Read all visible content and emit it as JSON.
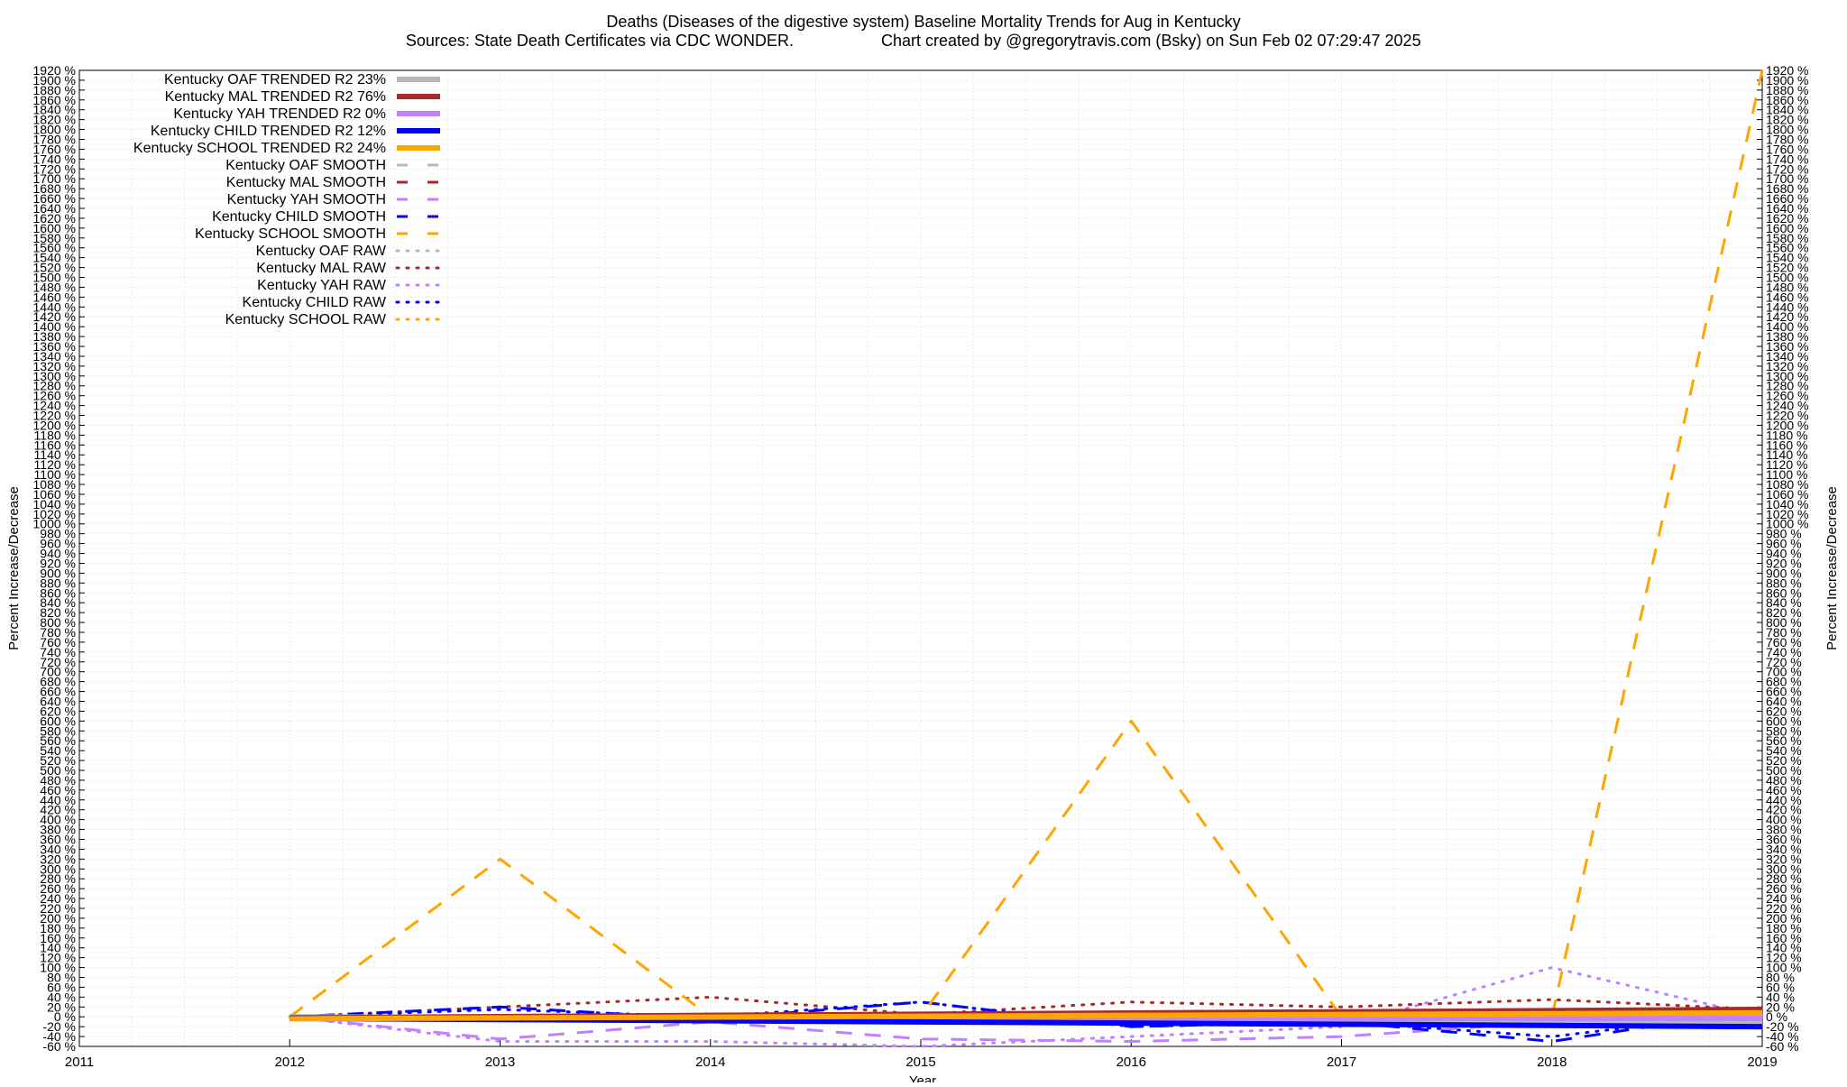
{
  "chart_data": {
    "type": "line",
    "title": "Deaths (Diseases of the digestive system)  Baseline Mortality Trends for Aug in Kentucky",
    "subtitle_left": "Sources: State Death Certificates via CDC WONDER.",
    "subtitle_right": "Chart created by @gregorytravis.com (Bsky) on Sun Feb 02 07:29:47 2025",
    "xlabel": "Year",
    "ylabel_left": "Percent Increase/Decrease",
    "ylabel_right": "Percent Increase/Decrease",
    "xlim": [
      2011,
      2019
    ],
    "ylim": [
      -60,
      1920
    ],
    "x_ticks": [
      "2011",
      "2012",
      "2013",
      "2014",
      "2015",
      "2016",
      "2017",
      "2018",
      "2019"
    ],
    "y_tick_step": 20,
    "y_tick_suffix": " %",
    "grid": true,
    "legend_position": "top-left",
    "series": [
      {
        "name": "Kentucky OAF TRENDED R2  23%",
        "style": "trend",
        "color": "#b8b8b8",
        "x": [
          2012,
          2019
        ],
        "y": [
          0,
          -10
        ]
      },
      {
        "name": "Kentucky MAL TRENDED R2  76%",
        "style": "trend",
        "color": "#a52a2a",
        "x": [
          2012,
          2019
        ],
        "y": [
          -2,
          15
        ]
      },
      {
        "name": "Kentucky YAH TRENDED R2   0%",
        "style": "trend",
        "color": "#c080ff",
        "x": [
          2012,
          2019
        ],
        "y": [
          -3,
          -3
        ]
      },
      {
        "name": "Kentucky CHILD TRENDED R2  12%",
        "style": "trend",
        "color": "#0000ff",
        "x": [
          2012,
          2019
        ],
        "y": [
          -3,
          -20
        ]
      },
      {
        "name": "Kentucky SCHOOL TRENDED R2  24%",
        "style": "trend",
        "color": "#ffa500",
        "x": [
          2012,
          2019
        ],
        "y": [
          -4,
          8
        ]
      },
      {
        "name": "Kentucky OAF SMOOTH",
        "style": "smooth",
        "color": "#b8b8b8",
        "x": [
          2012,
          2013,
          2014,
          2015,
          2016,
          2017,
          2018,
          2019
        ],
        "y": [
          0,
          -5,
          -8,
          -10,
          -8,
          -10,
          -12,
          -8
        ]
      },
      {
        "name": "Kentucky MAL SMOOTH",
        "style": "smooth",
        "color": "#a52a2a",
        "x": [
          2012,
          2013,
          2014,
          2015,
          2016,
          2017,
          2018,
          2019
        ],
        "y": [
          0,
          2,
          5,
          5,
          10,
          12,
          15,
          15
        ]
      },
      {
        "name": "Kentucky YAH SMOOTH",
        "style": "smooth",
        "color": "#c080ff",
        "x": [
          2012,
          2013,
          2014,
          2015,
          2016,
          2017,
          2018,
          2019
        ],
        "y": [
          0,
          -45,
          -10,
          -45,
          -50,
          -40,
          -10,
          0
        ]
      },
      {
        "name": "Kentucky CHILD SMOOTH",
        "style": "smooth",
        "color": "#0000ff",
        "x": [
          2012,
          2013,
          2014,
          2015,
          2016,
          2017,
          2018,
          2019
        ],
        "y": [
          0,
          20,
          -5,
          30,
          -20,
          -10,
          -50,
          15
        ]
      },
      {
        "name": "Kentucky SCHOOL SMOOTH",
        "style": "smooth",
        "color": "#ffa500",
        "x": [
          2012,
          2013,
          2014,
          2015,
          2016,
          2017,
          2018,
          2019
        ],
        "y": [
          0,
          320,
          0,
          0,
          600,
          0,
          0,
          1920
        ]
      },
      {
        "name": "Kentucky OAF RAW",
        "style": "raw",
        "color": "#b8b8b8",
        "x": [
          2012,
          2013,
          2014,
          2015,
          2016,
          2017,
          2018,
          2019
        ],
        "y": [
          0,
          -5,
          -10,
          -5,
          -15,
          -10,
          -20,
          -10
        ]
      },
      {
        "name": "Kentucky MAL RAW",
        "style": "raw",
        "color": "#a52a2a",
        "x": [
          2012,
          2013,
          2014,
          2015,
          2016,
          2017,
          2018,
          2019
        ],
        "y": [
          0,
          20,
          40,
          5,
          30,
          20,
          35,
          15
        ]
      },
      {
        "name": "Kentucky YAH RAW",
        "style": "raw",
        "color": "#c080ff",
        "x": [
          2012,
          2013,
          2014,
          2015,
          2016,
          2017,
          2018,
          2019
        ],
        "y": [
          0,
          -50,
          -50,
          -60,
          -40,
          -20,
          100,
          0
        ]
      },
      {
        "name": "Kentucky CHILD RAW",
        "style": "raw",
        "color": "#0000ff",
        "x": [
          2012,
          2013,
          2014,
          2015,
          2016,
          2017,
          2018,
          2019
        ],
        "y": [
          0,
          15,
          0,
          30,
          -20,
          -10,
          -40,
          10
        ]
      },
      {
        "name": "Kentucky SCHOOL RAW",
        "style": "raw",
        "color": "#ffa500",
        "x": [
          2012,
          2013,
          2014,
          2015,
          2016,
          2017,
          2018,
          2019
        ],
        "y": [
          0,
          0,
          0,
          0,
          0,
          0,
          0,
          0
        ]
      }
    ]
  }
}
